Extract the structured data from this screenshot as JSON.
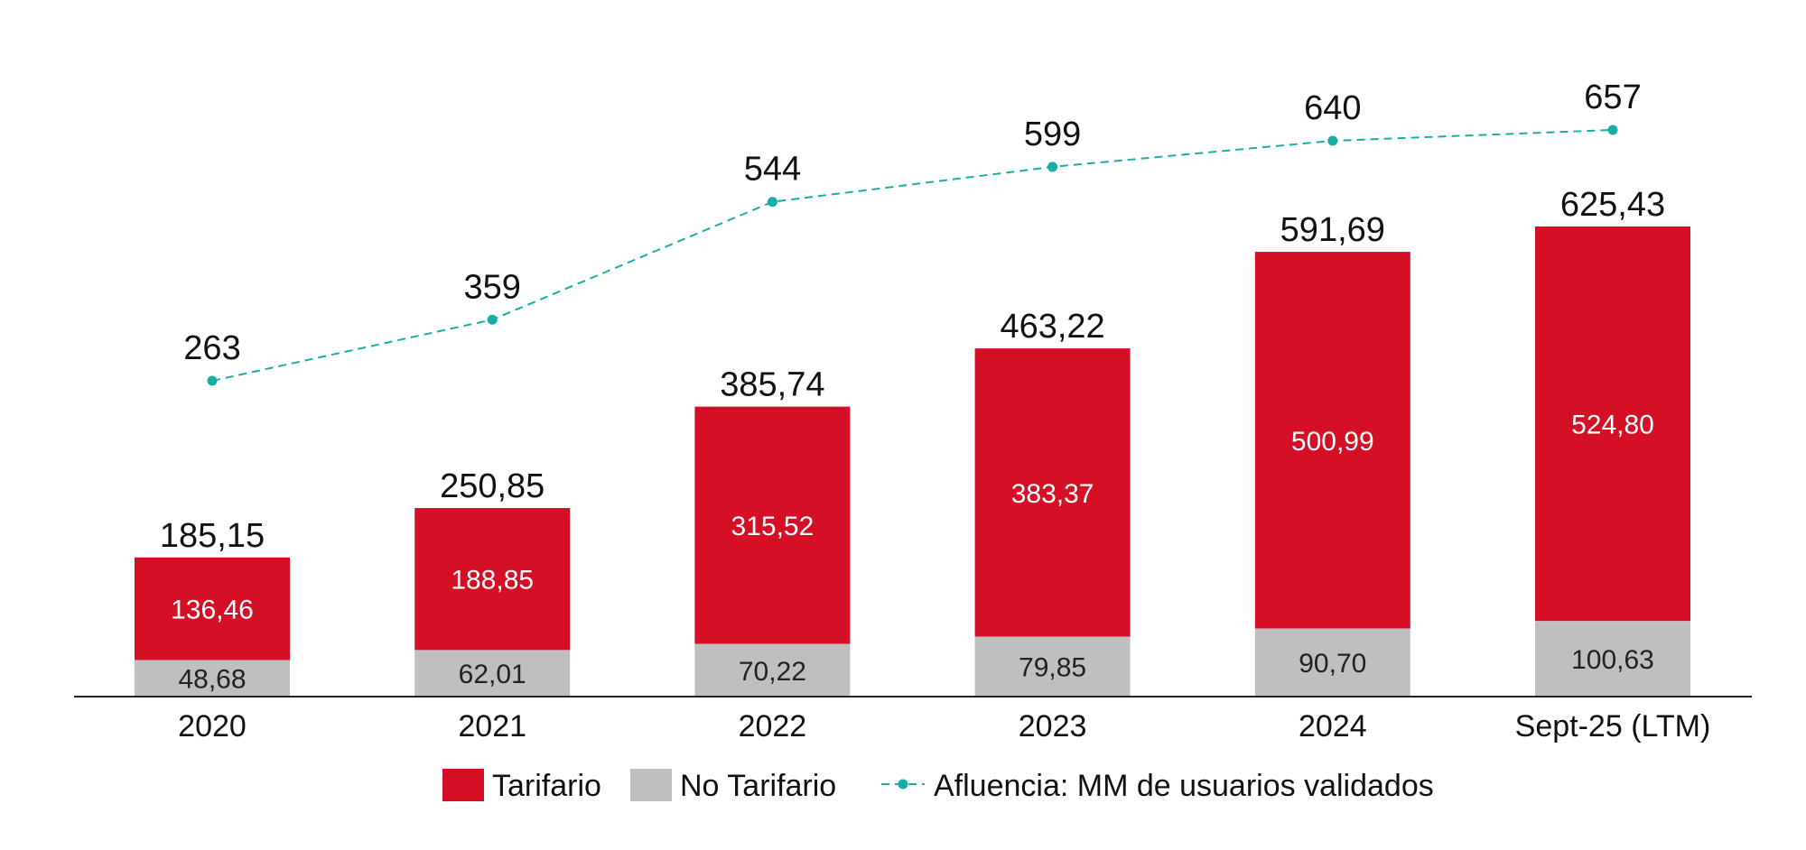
{
  "chart_data": {
    "type": "bar",
    "stacked": true,
    "categories": [
      "2020",
      "2021",
      "2022",
      "2023",
      "2024",
      "Sept-25 (LTM)"
    ],
    "series": [
      {
        "name": "No Tarifario",
        "values": [
          48.68,
          62.01,
          70.22,
          79.85,
          90.7,
          100.63
        ],
        "labels": [
          "48,68",
          "62,01",
          "70,22",
          "79,85",
          "90,70",
          "100,63"
        ],
        "color": "#BFBFBF"
      },
      {
        "name": "Tarifario",
        "values": [
          136.46,
          188.85,
          315.52,
          383.37,
          500.99,
          524.8
        ],
        "labels": [
          "136,46",
          "188,85",
          "315,52",
          "383,37",
          "500,99",
          "524,80"
        ],
        "color": "#D50F25"
      }
    ],
    "totals": {
      "values": [
        185.15,
        250.85,
        385.74,
        463.22,
        591.69,
        625.43
      ],
      "labels": [
        "185,15",
        "250,85",
        "385,74",
        "463,22",
        "591,69",
        "625,43"
      ]
    },
    "line": {
      "name": "Afluencia: MM de usuarios validados",
      "values": [
        263,
        359,
        544,
        599,
        640,
        657
      ],
      "labels": [
        "263",
        "359",
        "544",
        "599",
        "640",
        "657"
      ],
      "color": "#1AADA8",
      "style": "dashed",
      "secondary_axis": true
    },
    "legend": {
      "position": "bottom",
      "items": [
        {
          "label": "Tarifario",
          "color": "#D50F25",
          "kind": "box"
        },
        {
          "label": "No Tarifario",
          "color": "#BFBFBF",
          "kind": "box"
        },
        {
          "label": "Afluencia: MM de usuarios validados",
          "color": "#1AADA8",
          "kind": "line"
        }
      ]
    },
    "grid": false,
    "ylim": [
      0,
      760
    ],
    "y2lim": [
      -290,
      730
    ]
  }
}
